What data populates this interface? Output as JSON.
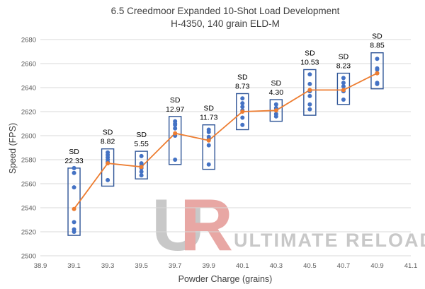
{
  "chart_data": {
    "type": "scatter",
    "title": "6.5 Creedmoor Expanded 10-Shot Load Development",
    "subtitle": "H-4350, 140 grain ELD-M",
    "xlabel": "Powder Charge (grains)",
    "ylabel": "Speed (FPS)",
    "xlim": [
      38.9,
      41.1
    ],
    "ylim": [
      2500,
      2680
    ],
    "x_ticks": [
      "38.9",
      "39.1",
      "39.3",
      "39.5",
      "39.7",
      "39.9",
      "40.1",
      "40.3",
      "40.5",
      "40.7",
      "40.9",
      "41.1"
    ],
    "y_ticks": [
      "2500",
      "2520",
      "2540",
      "2560",
      "2580",
      "2600",
      "2620",
      "2640",
      "2660",
      "2680"
    ],
    "grid": "horizontal",
    "colors": {
      "points": "#4472c4",
      "average_line": "#ed7d31",
      "box": "#2f5597",
      "grid": "#d9d9d9"
    },
    "groups": [
      {
        "x": 39.1,
        "shots": [
          2573,
          2569,
          2557,
          2528,
          2522,
          2520
        ],
        "box": [
          2517,
          2573
        ],
        "avg": 2539,
        "sd_label": "SD",
        "sd": "22.33"
      },
      {
        "x": 39.3,
        "shots": [
          2586,
          2584,
          2582,
          2580,
          2578,
          2563
        ],
        "box": [
          2558,
          2589
        ],
        "avg": 2577,
        "sd_label": "SD",
        "sd": "8.82"
      },
      {
        "x": 39.5,
        "shots": [
          2583,
          2577,
          2575,
          2573,
          2570,
          2567
        ],
        "box": [
          2564,
          2587
        ],
        "avg": 2574,
        "sd_label": "SD",
        "sd": "5.55"
      },
      {
        "x": 39.7,
        "shots": [
          2612,
          2610,
          2609,
          2606,
          2600,
          2580
        ],
        "box": [
          2576,
          2616
        ],
        "avg": 2602,
        "sd_label": "SD",
        "sd": "12.97"
      },
      {
        "x": 39.9,
        "shots": [
          2605,
          2603,
          2599,
          2597,
          2592,
          2576
        ],
        "box": [
          2572,
          2609
        ],
        "avg": 2596,
        "sd_label": "SD",
        "sd": "11.73"
      },
      {
        "x": 40.1,
        "shots": [
          2631,
          2627,
          2624,
          2621,
          2615,
          2609
        ],
        "box": [
          2605,
          2635
        ],
        "avg": 2620,
        "sd_label": "SD",
        "sd": "8.73"
      },
      {
        "x": 40.3,
        "shots": [
          2626,
          2623,
          2621,
          2618,
          2616
        ],
        "box": [
          2612,
          2630
        ],
        "avg": 2621,
        "sd_label": "SD",
        "sd": "4.30"
      },
      {
        "x": 40.5,
        "shots": [
          2651,
          2643,
          2637,
          2633,
          2626,
          2622
        ],
        "box": [
          2617,
          2655
        ],
        "avg": 2638,
        "sd_label": "SD",
        "sd": "10.53"
      },
      {
        "x": 40.7,
        "shots": [
          2648,
          2644,
          2641,
          2637,
          2630
        ],
        "box": [
          2626,
          2652
        ],
        "avg": 2638,
        "sd_label": "SD",
        "sd": "8.23"
      },
      {
        "x": 40.9,
        "shots": [
          2664,
          2656,
          2655,
          2652,
          2644,
          2643
        ],
        "box": [
          2639,
          2669
        ],
        "avg": 2652,
        "sd_label": "SD",
        "sd": "8.85"
      }
    ]
  },
  "watermark": {
    "logo_u": "U",
    "logo_r": "R",
    "text": "ULTIMATE RELOADER",
    "colors": {
      "u": "#c8c8c8",
      "r": "#e8a7a4"
    }
  }
}
